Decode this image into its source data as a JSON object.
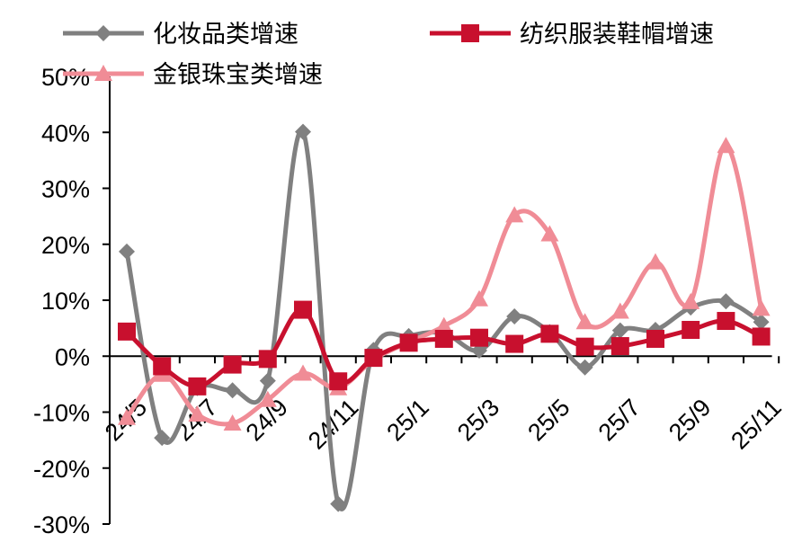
{
  "chart_data": {
    "type": "line",
    "title": "",
    "xlabel": "",
    "ylabel": "",
    "ylim": [
      -30,
      50
    ],
    "y_ticks": [
      "50%",
      "40%",
      "30%",
      "20%",
      "10%",
      "0%",
      "-10%",
      "-20%",
      "-30%"
    ],
    "y_tick_values": [
      50,
      40,
      30,
      20,
      10,
      0,
      -10,
      -20,
      -30
    ],
    "x": [
      "24/5",
      "24/6",
      "24/7",
      "24/8",
      "24/9",
      "24/10",
      "24/11",
      "24/12",
      "25/1",
      "25/2",
      "25/3",
      "25/4",
      "25/5",
      "25/6",
      "25/7",
      "25/8",
      "25/9",
      "25/10",
      "25/11"
    ],
    "x_tick_labels": [
      "24/5",
      "24/7",
      "24/9",
      "24/11",
      "25/1",
      "25/3",
      "25/5",
      "25/7",
      "25/9",
      "25/11"
    ],
    "x_tick_indices": [
      0,
      2,
      4,
      6,
      8,
      10,
      12,
      14,
      16,
      18
    ],
    "legend_position": "top",
    "grid": false,
    "series": [
      {
        "name": "化妆品类增速",
        "color": "#808080",
        "marker": "diamond",
        "values": [
          18.7,
          -14.6,
          -5.7,
          -6.1,
          -4.4,
          40.1,
          -26.4,
          1.1,
          3.6,
          4.1,
          1.0,
          7.1,
          4.3,
          -2.0,
          4.6,
          4.7,
          8.7,
          9.8,
          6.1
        ]
      },
      {
        "name": "纺织服装鞋帽增速",
        "color": "#c8102e",
        "marker": "square",
        "values": [
          4.4,
          -1.8,
          -5.4,
          -1.5,
          -0.5,
          8.3,
          -4.5,
          -0.3,
          2.4,
          3.1,
          3.3,
          2.2,
          4.0,
          1.7,
          1.8,
          3.1,
          4.7,
          6.3,
          3.5
        ]
      },
      {
        "name": "金银珠宝类增速",
        "color": "#f08c96",
        "marker": "triangle",
        "values": [
          -11.0,
          -3.3,
          -10.4,
          -12.0,
          -7.8,
          -3.1,
          -5.7,
          -0.6,
          2.5,
          5.4,
          10.2,
          25.2,
          21.8,
          6.1,
          8.0,
          16.8,
          9.7,
          37.6,
          8.5
        ]
      }
    ]
  }
}
